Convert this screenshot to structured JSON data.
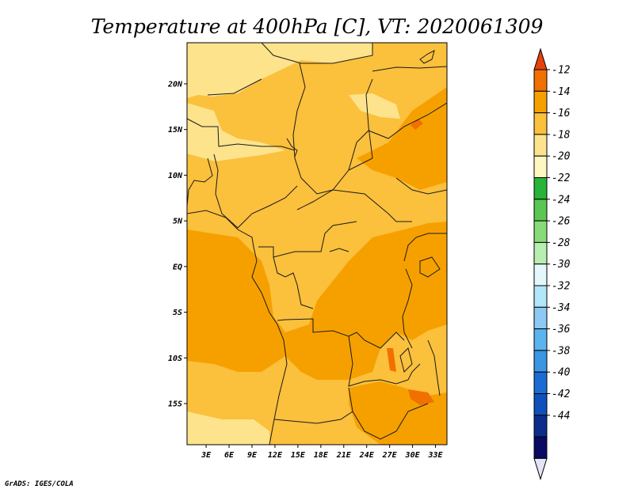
{
  "chart_data": {
    "type": "heatmap",
    "title": "Temperature at 400hPa [C], VT: 2020061309",
    "variable": "Temperature",
    "level": "400hPa",
    "units": "C",
    "valid_time": "2020061309",
    "x_ticks": [
      "3E",
      "6E",
      "9E",
      "12E",
      "15E",
      "18E",
      "21E",
      "24E",
      "27E",
      "30E",
      "33E"
    ],
    "y_ticks": [
      "20N",
      "15N",
      "10N",
      "5N",
      "EQ",
      "5S",
      "10S",
      "15S"
    ],
    "x_tick_values": [
      3,
      6,
      9,
      12,
      15,
      18,
      21,
      24,
      27,
      30,
      33
    ],
    "y_tick_values": [
      20,
      15,
      10,
      5,
      0,
      -5,
      -10,
      -15
    ],
    "xlim": [
      0.5,
      34.5
    ],
    "ylim": [
      -19.5,
      24.5
    ],
    "colorbar": {
      "labels": [
        "-12",
        "-14",
        "-16",
        "-18",
        "-20",
        "-22",
        "-24",
        "-26",
        "-28",
        "-30",
        "-32",
        "-34",
        "-36",
        "-38",
        "-40",
        "-42",
        "-44"
      ],
      "colors": [
        "#e8420c",
        "#f07000",
        "#f6a000",
        "#fbc03c",
        "#fde38c",
        "#fef7c0",
        "#28b437",
        "#5ac850",
        "#88dc78",
        "#b8eeb0",
        "#e4f8fc",
        "#b2e6fa",
        "#8ccaf4",
        "#5ab4ee",
        "#3a96e2",
        "#1a6cd4",
        "#1050bc",
        "#0c2e8a",
        "#0a0a64",
        "#e4e4f8"
      ]
    },
    "regions": [
      {
        "level": "-20",
        "desc": "northern areas"
      },
      {
        "level": "-18",
        "desc": "central belt"
      },
      {
        "level": "-16",
        "desc": "southwest Atlantic and southeast"
      },
      {
        "level": "-14",
        "desc": "small pockets near 28E-33E"
      }
    ]
  },
  "credit": "GrADS: IGES/COLA"
}
